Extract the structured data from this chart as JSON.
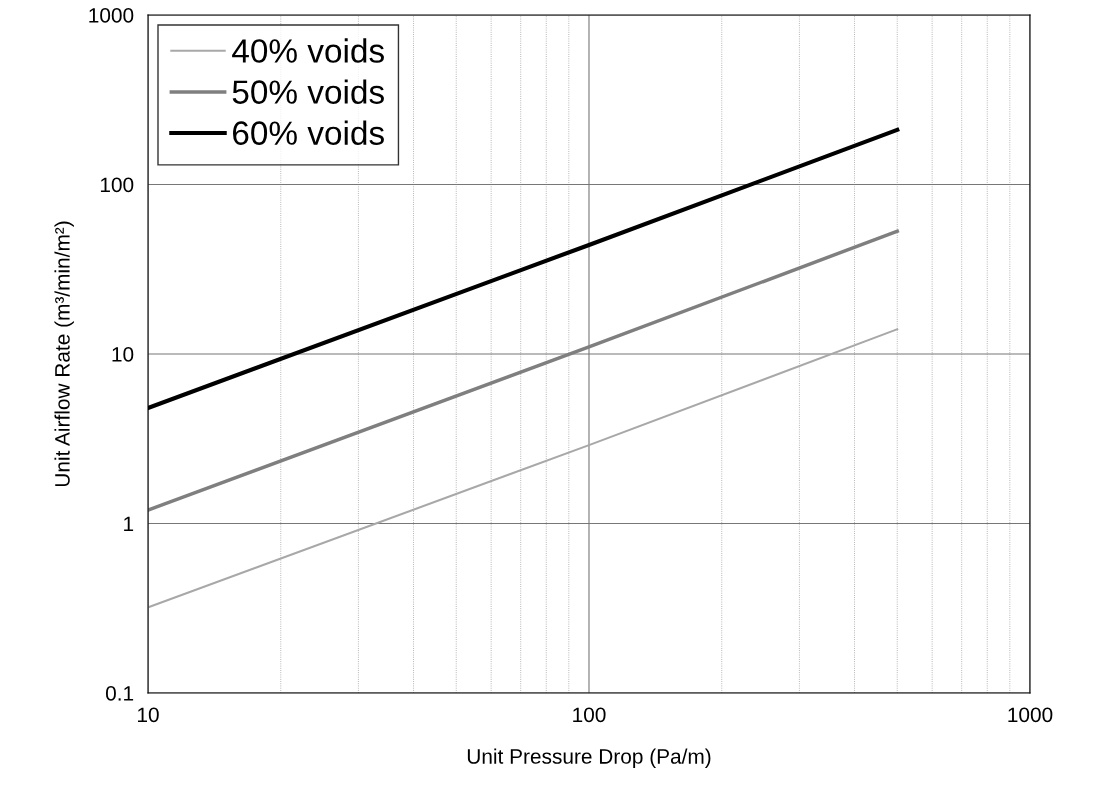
{
  "chart_data": {
    "type": "line",
    "xlabel": "Unit Pressure Drop (Pa/m)",
    "ylabel": "Unit Airflow Rate (m³/min/m²)",
    "x": [
      10,
      100,
      500
    ],
    "series": [
      {
        "name": "40% voids",
        "color": "#a8a8a8",
        "values": [
          0.32,
          2.9,
          14
        ]
      },
      {
        "name": "50% voids",
        "color": "#7f7f7f",
        "values": [
          1.2,
          11,
          53
        ]
      },
      {
        "name": "60% voids",
        "color": "#000000",
        "values": [
          4.8,
          44,
          210
        ]
      }
    ],
    "log": "xy",
    "xlim": [
      10,
      1000
    ],
    "xticks": [
      10,
      100,
      1000
    ],
    "ylim": [
      0.1,
      1000
    ],
    "yticks": [
      0.1,
      1,
      10,
      100,
      1000
    ],
    "grid": true,
    "legend": "top left",
    "marker": "none",
    "line_style": "solid"
  }
}
